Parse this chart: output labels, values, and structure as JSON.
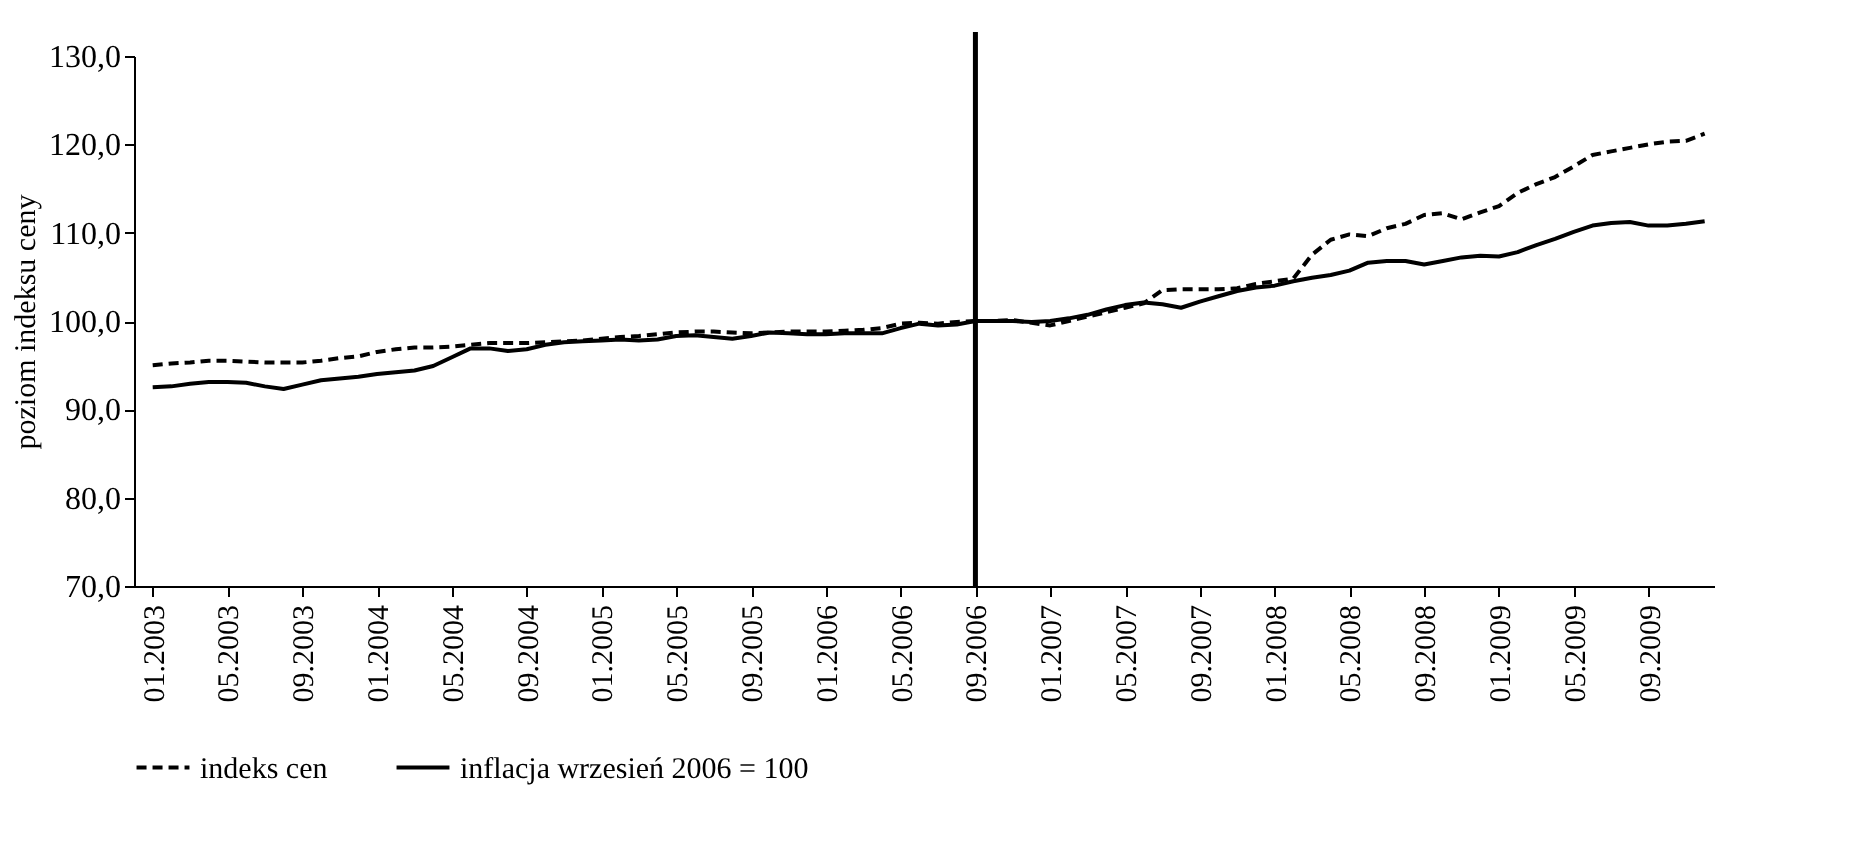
{
  "chart_data": {
    "type": "line",
    "ylabel": "poziom indeksu ceny",
    "categories": [
      "01.2003",
      null,
      null,
      null,
      "05.2003",
      null,
      null,
      null,
      "09.2003",
      null,
      null,
      null,
      "01.2004",
      null,
      null,
      null,
      "05.2004",
      null,
      null,
      null,
      "09.2004",
      null,
      null,
      null,
      "01.2005",
      null,
      null,
      null,
      "05.2005",
      null,
      null,
      null,
      "09.2005",
      null,
      null,
      null,
      "01.2006",
      null,
      null,
      null,
      "05.2006",
      null,
      null,
      null,
      "09.2006",
      null,
      null,
      null,
      "01.2007",
      null,
      null,
      null,
      "05.2007",
      null,
      null,
      null,
      "09.2007",
      null,
      null,
      null,
      "01.2008",
      null,
      null,
      null,
      "05.2008",
      null,
      null,
      null,
      "09.2008",
      null,
      null,
      null,
      "01.2009",
      null,
      null,
      null,
      "05.2009",
      null,
      null,
      null,
      "09.2009",
      null,
      null,
      null
    ],
    "series": [
      {
        "name": "indeks cen",
        "color": "#000000",
        "line_style": "dashed",
        "values": [
          95.0,
          95.2,
          95.3,
          95.5,
          95.5,
          95.4,
          95.3,
          95.3,
          95.3,
          95.5,
          95.8,
          96.0,
          96.5,
          96.8,
          97.0,
          97.0,
          97.1,
          97.3,
          97.5,
          97.5,
          97.5,
          97.6,
          97.7,
          97.8,
          98.0,
          98.2,
          98.3,
          98.5,
          98.7,
          98.8,
          98.8,
          98.7,
          98.6,
          98.7,
          98.8,
          98.8,
          98.8,
          98.9,
          99.0,
          99.2,
          99.7,
          99.8,
          99.7,
          99.9,
          100.0,
          100.0,
          100.1,
          99.8,
          99.5,
          100.0,
          100.5,
          101.0,
          101.5,
          102.0,
          103.5,
          103.6,
          103.6,
          103.6,
          103.7,
          104.2,
          104.5,
          104.8,
          107.5,
          109.2,
          109.8,
          109.6,
          110.5,
          111.0,
          112.0,
          112.2,
          111.5,
          112.3,
          113.0,
          114.5,
          115.5,
          116.3,
          117.5,
          118.8,
          119.2,
          119.6,
          120.0,
          120.3,
          120.4,
          121.2
        ]
      },
      {
        "name": "inflacja wrzesień 2006 = 100",
        "color": "#000000",
        "line_style": "solid",
        "values": [
          92.5,
          92.6,
          92.9,
          93.1,
          93.1,
          93.0,
          92.6,
          92.3,
          92.8,
          93.3,
          93.5,
          93.7,
          94.0,
          94.2,
          94.4,
          94.9,
          95.9,
          96.9,
          96.9,
          96.6,
          96.8,
          97.3,
          97.6,
          97.7,
          97.8,
          97.9,
          97.8,
          97.9,
          98.3,
          98.4,
          98.2,
          98.0,
          98.3,
          98.7,
          98.6,
          98.5,
          98.5,
          98.6,
          98.6,
          98.6,
          99.2,
          99.7,
          99.5,
          99.6,
          100.0,
          100.0,
          100.0,
          99.9,
          100.0,
          100.3,
          100.7,
          101.3,
          101.8,
          102.1,
          101.9,
          101.5,
          102.2,
          102.8,
          103.4,
          103.8,
          104.0,
          104.5,
          104.9,
          105.2,
          105.7,
          106.6,
          106.8,
          106.8,
          106.4,
          106.8,
          107.2,
          107.4,
          107.3,
          107.8,
          108.6,
          109.3,
          110.1,
          110.8,
          111.1,
          111.2,
          110.8,
          110.8,
          111.0,
          111.3
        ]
      }
    ],
    "ylim": [
      70,
      130
    ],
    "yticks": [
      {
        "value": 70,
        "label": "70,0"
      },
      {
        "value": 80,
        "label": "80,0"
      },
      {
        "value": 90,
        "label": "90,0"
      },
      {
        "value": 100,
        "label": "100,0"
      },
      {
        "value": 110,
        "label": "110,0"
      },
      {
        "value": 120,
        "label": "120,0"
      },
      {
        "value": 130,
        "label": "130,0"
      }
    ],
    "ref_lines": [
      {
        "axis": "x",
        "value": "09.2006",
        "color": "#000000",
        "line_style": "solid"
      }
    ],
    "grid": false,
    "legend": "bottom",
    "marker": "none"
  }
}
